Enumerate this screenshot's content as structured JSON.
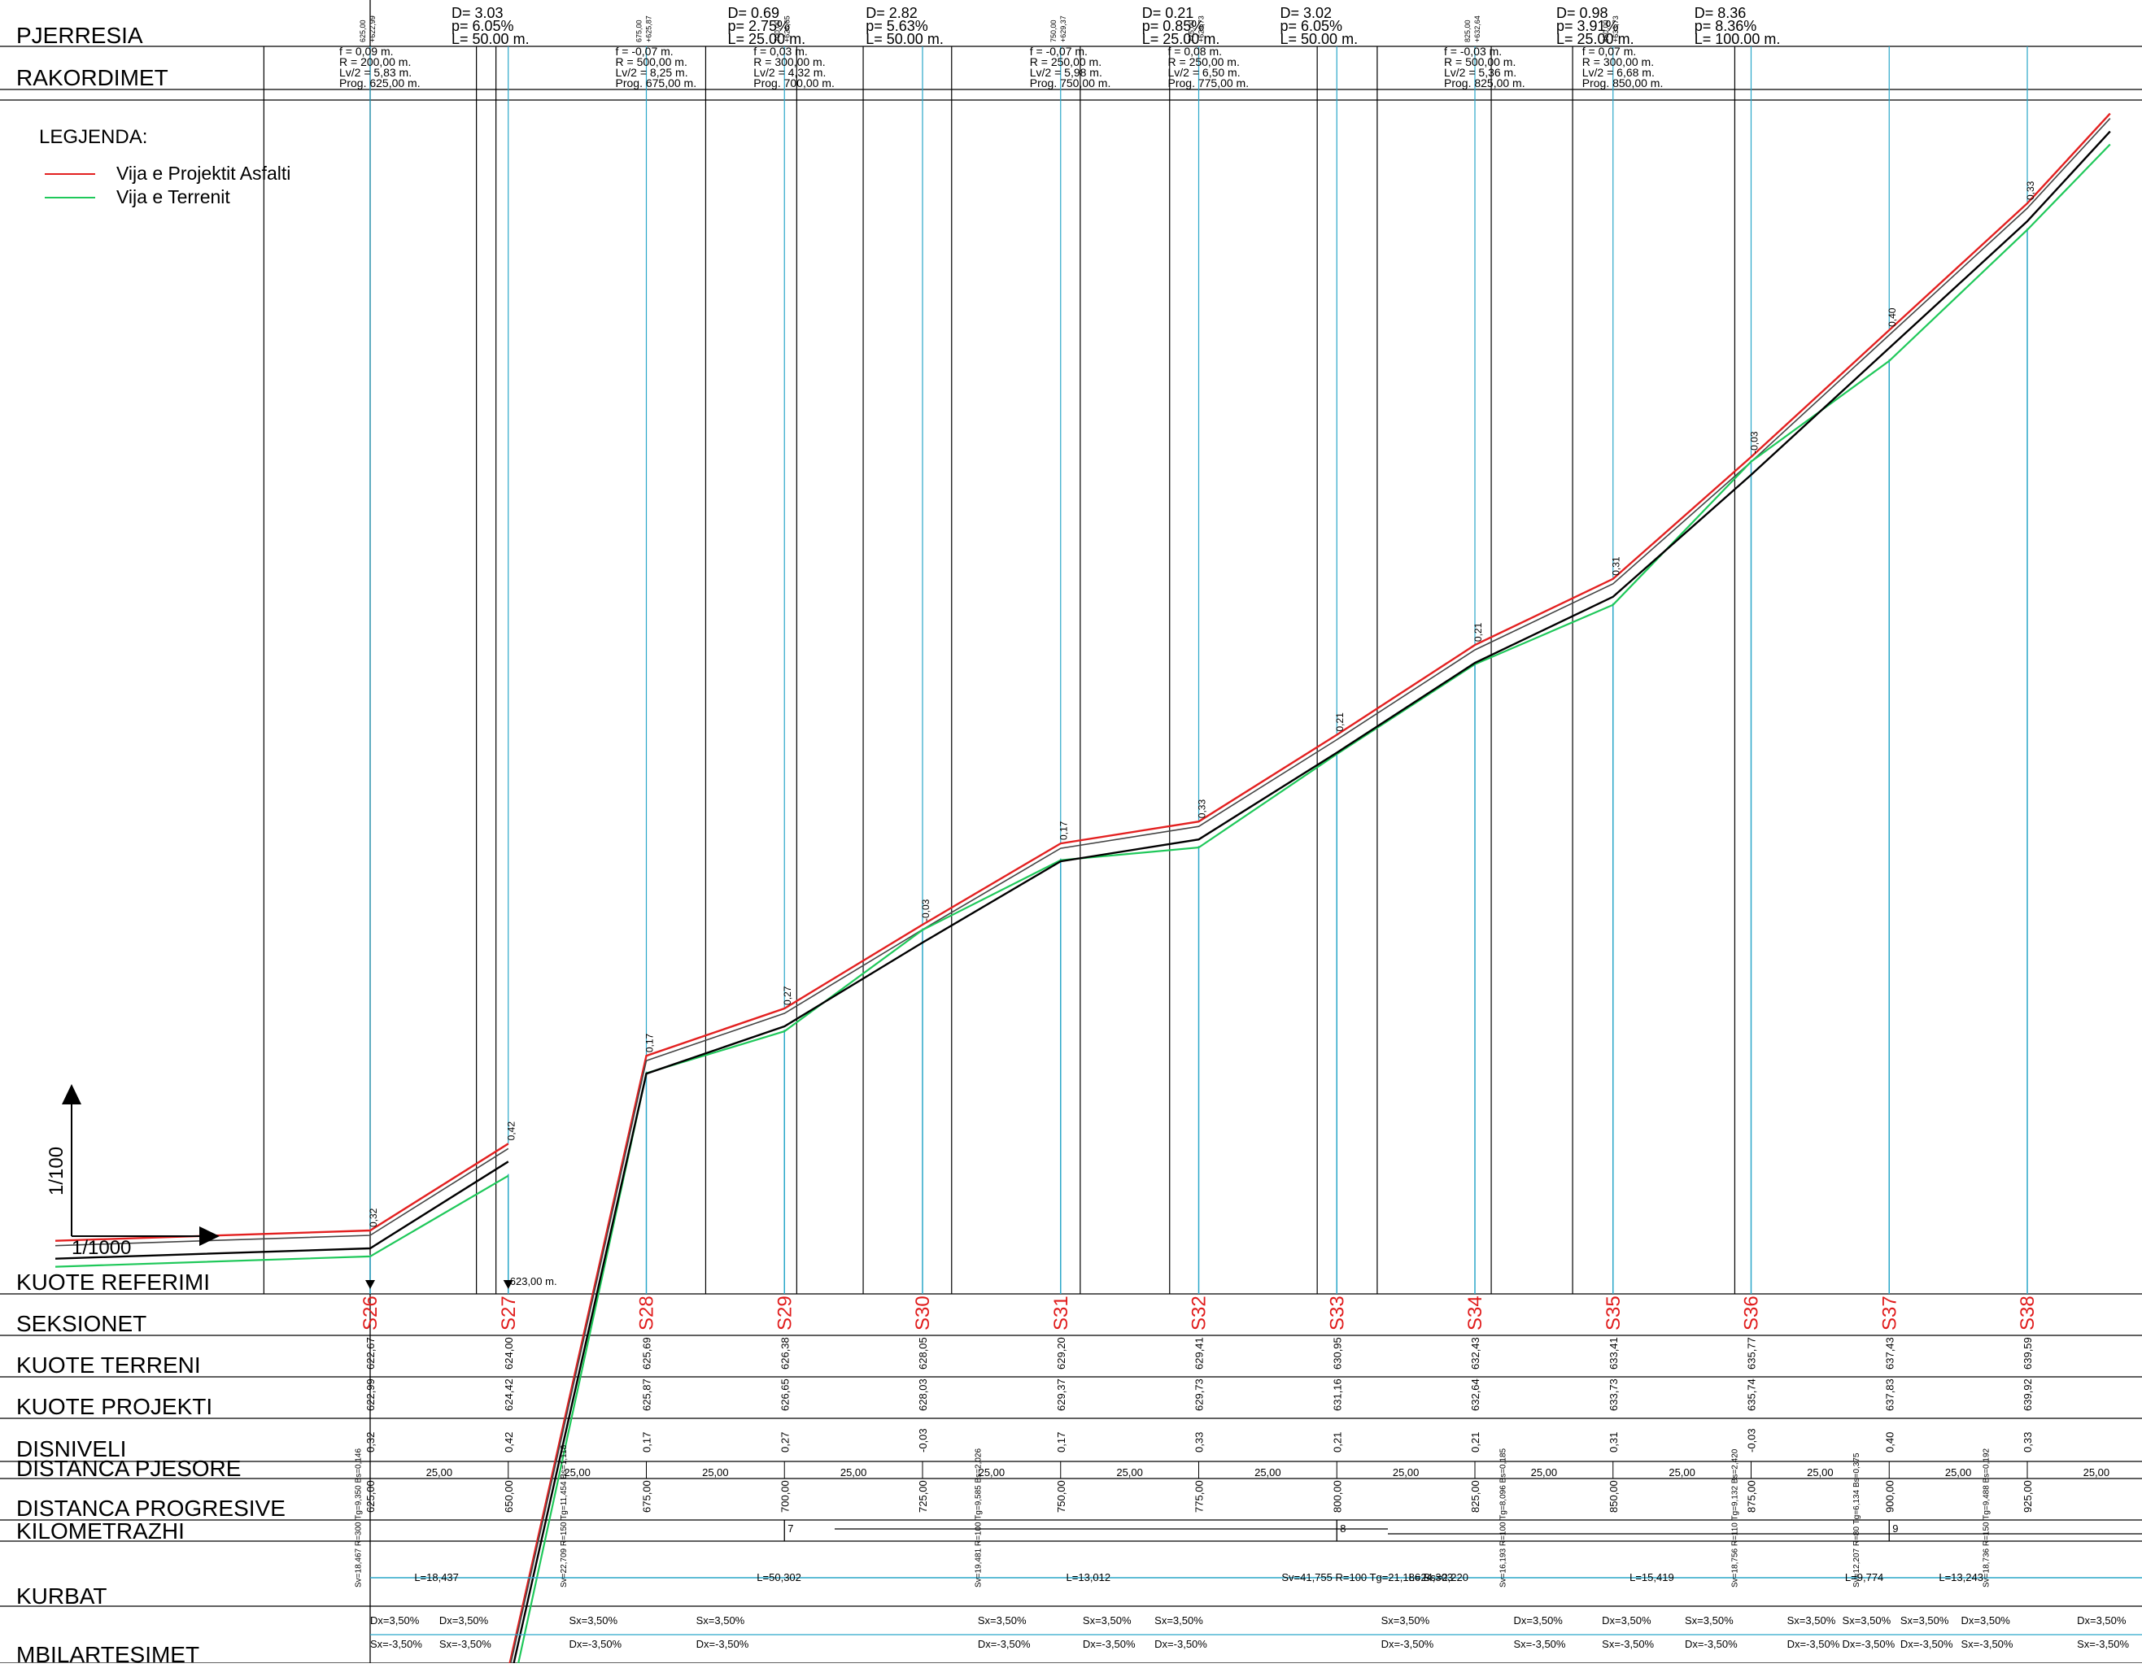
{
  "rows": {
    "pjerresia": "PJERRESIA",
    "rakordimet": "RAKORDIMET",
    "kuote_referimi": "KUOTE REFERIMI",
    "seksionet": "SEKSIONET",
    "kuote_terreni": "KUOTE TERRENI",
    "kuote_projekti": "KUOTE PROJEKTI",
    "disniveli": "DISNIVELI",
    "distanca_pjesore": "DISTANCA PJESORE",
    "distanca_progresive": "DISTANCA PROGRESIVE",
    "kilometrazhi": "KILOMETRAZHI",
    "kurbat": "KURBAT",
    "mbilartesimet": "MBILARTESIMET"
  },
  "legend": {
    "title": "LEGJENDA:",
    "items": [
      {
        "label": "Vija e Projektit Asfalti",
        "color": "#e32020"
      },
      {
        "label": "Vija e Terrenit",
        "color": "#1fc85a"
      }
    ]
  },
  "scale": {
    "vertical": "1/100",
    "horizontal": "1/1000"
  },
  "reference_elevation": "623,00 m.",
  "colors": {
    "section": "#e01b1b",
    "design": "#e32020",
    "terrain": "#1fc85a",
    "offset": "#000000",
    "station": "#2aa7c9",
    "curve_line": "#2aa7c9"
  },
  "chart_data": {
    "type": "line",
    "title": "",
    "x_axis": "DISTANCA PROGRESIVE",
    "ylim": [
      622,
      641
    ],
    "sections": [
      {
        "name": "S26",
        "station": 625.0,
        "terrain": "622,67",
        "design": "622,99",
        "dh": "0,32",
        "prog": "625,00"
      },
      {
        "name": "S27",
        "station": 650.0,
        "terrain": "624,00",
        "design": "624,42",
        "dh": "0,42",
        "prog": "650,00"
      },
      {
        "name": "S28",
        "station": 675.0,
        "terrain": "625,69",
        "design": "625,87",
        "dh": "0,17",
        "prog": "675,00"
      },
      {
        "name": "S29",
        "station": 700.0,
        "terrain": "626,38",
        "design": "626,65",
        "dh": "0,27",
        "prog": "700,00"
      },
      {
        "name": "S30",
        "station": 725.0,
        "terrain": "628,05",
        "design": "628,03",
        "dh": "-0,03",
        "prog": "725,00"
      },
      {
        "name": "S31",
        "station": 750.0,
        "terrain": "629,20",
        "design": "629,37",
        "dh": "0,17",
        "prog": "750,00"
      },
      {
        "name": "S32",
        "station": 775.0,
        "terrain": "629,41",
        "design": "629,73",
        "dh": "0,33",
        "prog": "775,00"
      },
      {
        "name": "S33",
        "station": 800.0,
        "terrain": "630,95",
        "design": "631,16",
        "dh": "0,21",
        "prog": "800,00"
      },
      {
        "name": "S34",
        "station": 825.0,
        "terrain": "632,43",
        "design": "632,64",
        "dh": "0,21",
        "prog": "825,00"
      },
      {
        "name": "S35",
        "station": 850.0,
        "terrain": "633,41",
        "design": "633,73",
        "dh": "0,31",
        "prog": "850,00"
      },
      {
        "name": "S36",
        "station": 875.0,
        "terrain": "635,77",
        "design": "635,74",
        "dh": "-0,03",
        "prog": "875,00"
      },
      {
        "name": "S37",
        "station": 900.0,
        "terrain": "637,43",
        "design": "637,83",
        "dh": "0,40",
        "prog": "900,00"
      },
      {
        "name": "S38",
        "station": 925.0,
        "terrain": "639,59",
        "design": "639,92",
        "dh": "0,33",
        "prog": "925,00"
      }
    ],
    "partial_distance": "25,00",
    "grades": [
      {
        "D": "D= 3.03",
        "p": "p= 6.05%",
        "L": "L= 50.00 m.",
        "x_start": 625.0
      },
      {
        "D": "D= 0.69",
        "p": "p= 2.75%",
        "L": "L= 25.00 m.",
        "x_start": 675.0
      },
      {
        "D": "D= 2.82",
        "p": "p= 5.63%",
        "L": "L= 50.00 m.",
        "x_start": 700.0
      },
      {
        "D": "D= 0.21",
        "p": "p= 0.85%",
        "L": "L= 25.00 m.",
        "x_start": 750.0
      },
      {
        "D": "D= 3.02",
        "p": "p= 6.05%",
        "L": "L= 50.00 m.",
        "x_start": 775.0
      },
      {
        "D": "D= 0.98",
        "p": "p= 3.91%",
        "L": "L= 25.00 m.",
        "x_start": 825.0
      },
      {
        "D": "D= 8.36",
        "p": "p= 8.36%",
        "L": "L= 100.00 m.",
        "x_start": 850.0
      }
    ],
    "pvi_labels": [
      {
        "x": 625.0,
        "a": "625,00",
        "b": "+622,99"
      },
      {
        "x": 675.0,
        "a": "675,00",
        "b": "+625,87"
      },
      {
        "x": 700.0,
        "a": "700,00",
        "b": "+626,65"
      },
      {
        "x": 750.0,
        "a": "750,00",
        "b": "+629,37"
      },
      {
        "x": 775.0,
        "a": "775,00",
        "b": "+629,73"
      },
      {
        "x": 825.0,
        "a": "825,00",
        "b": "+632,64"
      },
      {
        "x": 850.0,
        "a": "850,00",
        "b": "+633,73"
      }
    ],
    "rakordimet": [
      {
        "x": 625.0,
        "f": "f = 0,09 m.",
        "R": "R = 200,00 m.",
        "Lv": "Lv/2 = 5,83 m.",
        "prog": "Prog. 625,00 m."
      },
      {
        "x": 675.0,
        "f": "f = -0,07 m.",
        "R": "R = 500,00 m.",
        "Lv": "Lv/2 = 8,25 m.",
        "prog": "Prog. 675,00 m."
      },
      {
        "x": 700.0,
        "f": "f = 0,03 m.",
        "R": "R = 300,00 m.",
        "Lv": "Lv/2 = 4,32 m.",
        "prog": "Prog. 700,00 m."
      },
      {
        "x": 750.0,
        "f": "f = -0,07 m.",
        "R": "R = 250,00 m.",
        "Lv": "Lv/2 = 5,98 m.",
        "prog": "Prog. 750,00 m."
      },
      {
        "x": 775.0,
        "f": "f = 0,08 m.",
        "R": "R = 250,00 m.",
        "Lv": "Lv/2 = 6,50 m.",
        "prog": "Prog. 775,00 m."
      },
      {
        "x": 825.0,
        "f": "f = -0,03 m.",
        "R": "R = 500,00 m.",
        "Lv": "Lv/2 = 5,36 m.",
        "prog": "Prog. 825,00 m."
      },
      {
        "x": 850.0,
        "f": "f = 0,07 m.",
        "R": "R = 300,00 m.",
        "Lv": "Lv/2 = 6,68 m.",
        "prog": "Prog. 850,00 m."
      }
    ],
    "km_marks": [
      {
        "x": 700.0,
        "label": "7"
      },
      {
        "x": 800.0,
        "label": "8"
      },
      {
        "x": 900.0,
        "label": "9"
      }
    ],
    "curves": [
      {
        "x": 633.0,
        "label": "L=18,437"
      },
      {
        "x": 695.0,
        "label": "L=50,302"
      },
      {
        "x": 751.0,
        "label": "L=13,012"
      },
      {
        "x": 790.0,
        "label": "Sv=41,755 R=100 Tg=21,186 Bs=2,220"
      },
      {
        "x": 813.0,
        "label": "L=24,303"
      },
      {
        "x": 853.0,
        "label": "L=15,419"
      },
      {
        "x": 892.0,
        "label": "L=9,774"
      },
      {
        "x": 909.0,
        "label": "L=13,243"
      }
    ],
    "curve_params": [
      {
        "x": 623.3,
        "text": "Sv=18,467 R=300 Tg=9,350 Bs=0,146"
      },
      {
        "x": 660.5,
        "text": "Sv=22,709 R=150 Tg=11,454 Bs=1,118"
      },
      {
        "x": 735.5,
        "text": "Sv=19,481 R=100 Tg=9,585 Bs=2,026"
      },
      {
        "x": 830.5,
        "text": "Sv=16,193 R=100 Tg=8,096 Bs=0,185"
      },
      {
        "x": 872.5,
        "text": "Sv=18,756 R=110 Tg=9,132 Bs=2,420"
      },
      {
        "x": 894.5,
        "text": "Sv=12,207 R=80 Tg=6,134 Bs=0,375"
      },
      {
        "x": 918.0,
        "text": "Sv=18,736 R=150 Tg=9,488 Bs=0,192"
      }
    ],
    "superelevation": [
      {
        "x": 625.0,
        "top": "Dx=3,50%",
        "bot": "Sx=-3,50%"
      },
      {
        "x": 637.5,
        "top": "Dx=3,50%",
        "bot": "Sx=-3,50%"
      },
      {
        "x": 661.0,
        "top": "Sx=3,50%",
        "bot": "Dx=-3,50%"
      },
      {
        "x": 684.0,
        "top": "Sx=3,50%",
        "bot": "Dx=-3,50%"
      },
      {
        "x": 735.0,
        "top": "Sx=3,50%",
        "bot": "Dx=-3,50%"
      },
      {
        "x": 754.0,
        "top": "Sx=3,50%",
        "bot": "Dx=-3,50%"
      },
      {
        "x": 767.0,
        "top": "Sx=3,50%",
        "bot": "Dx=-3,50%"
      },
      {
        "x": 808.0,
        "top": "Sx=3,50%",
        "bot": "Dx=-3,50%"
      },
      {
        "x": 832.0,
        "top": "Dx=3,50%",
        "bot": "Sx=-3,50%"
      },
      {
        "x": 848.0,
        "top": "Dx=3,50%",
        "bot": "Sx=-3,50%"
      },
      {
        "x": 863.0,
        "top": "Sx=3,50%",
        "bot": "Dx=-3,50%"
      },
      {
        "x": 881.5,
        "top": "Sx=3,50%",
        "bot": "Dx=-3,50%"
      },
      {
        "x": 891.5,
        "top": "Sx=3,50%",
        "bot": "Dx=-3,50%"
      },
      {
        "x": 902.0,
        "top": "Sx=3,50%",
        "bot": "Dx=-3,50%"
      },
      {
        "x": 913.0,
        "top": "Dx=3,50%",
        "bot": "Sx=-3,50%"
      },
      {
        "x": 934.0,
        "top": "Dx=3,50%",
        "bot": "Sx=-3,50%"
      }
    ]
  }
}
